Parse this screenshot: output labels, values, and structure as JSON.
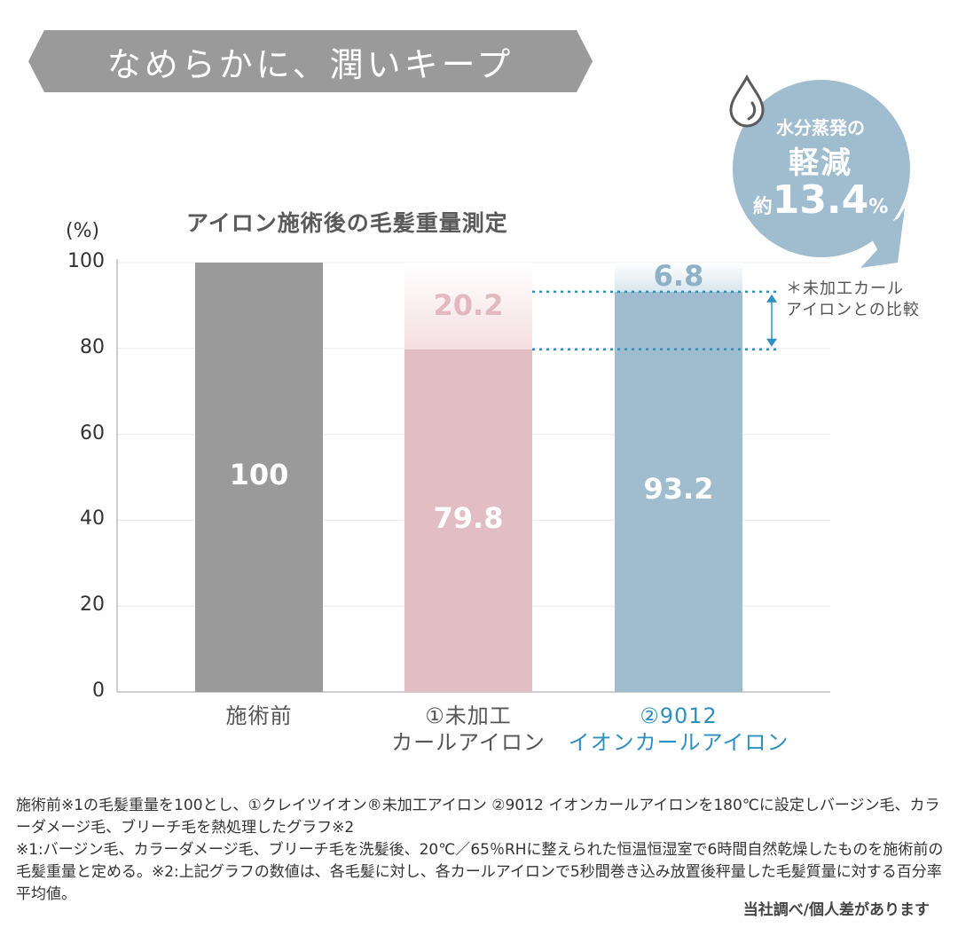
{
  "banner": {
    "text": "なめらかに、潤いキープ"
  },
  "bubble": {
    "line1": "水分蒸発の",
    "line2": "軽減",
    "prefix": "約",
    "value": "13.4",
    "unit": "%"
  },
  "colors": {
    "banner": "#999999",
    "gray_bar": "#9a9a9a",
    "pink_bar": "#e2bdc3",
    "pink_top": "#f4dfe2",
    "blue_bar": "#9fbdce",
    "blue_top": "#d9e6ee",
    "accent_blue": "#2f8fbf",
    "bubble": "#9fbdce"
  },
  "compare_note": [
    "＊未加工カール",
    "アイロンとの比較"
  ],
  "chart_data": {
    "type": "bar",
    "title": "アイロン施術後の毛髪重量測定",
    "ylabel": "(%)",
    "ylim": [
      0,
      100
    ],
    "yticks": [
      "100",
      "80",
      "60",
      "40",
      "20",
      "0"
    ],
    "categories": [
      [
        "施術前"
      ],
      [
        "①未加工",
        "カールアイロン"
      ],
      [
        "②9012",
        "イオンカールアイロン"
      ]
    ],
    "values": [
      100,
      79.8,
      93.2
    ],
    "value_labels": [
      "100",
      "79.8",
      "93.2"
    ],
    "loss": [
      null,
      20.2,
      6.8
    ],
    "loss_labels": [
      "",
      "20.2",
      "6.8"
    ],
    "grid": true
  },
  "footnote": "施術前※1の毛髪重量を100とし、①クレイツイオン®未加工アイロン ②9012 イオンカールアイロンを180℃に設定しバージン毛、カラーダメージ毛、ブリーチ毛を熱処理したグラフ※2\n※1:バージン毛、カラーダメージ毛、ブリーチ毛を洗髪後、20℃／65％RHに整えられた恒温恒湿室で6時間自然乾燥したものを施術前の毛髪重量と定める。※2:上記グラフの数値は、各毛髪に対し、各カールアイロンで5秒間巻き込み放置後秤量した毛髪質量に対する百分率平均値。",
  "credit": "当社調べ/個人差があります"
}
